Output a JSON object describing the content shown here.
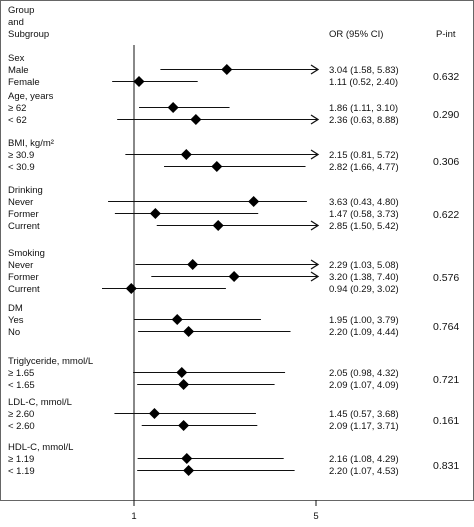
{
  "header": {
    "group_line1": "Group",
    "group_line2": "and",
    "group_line3": "Subgroup",
    "or_col": "OR (95% CI)",
    "pint_col": "P-int"
  },
  "chart_data": {
    "type": "forest",
    "xaxis": {
      "reference_line": 1,
      "ticks": [
        1,
        5
      ],
      "tick_labels": [
        "1",
        "5"
      ]
    },
    "groups": [
      {
        "label": "Sex",
        "pint": "0.632",
        "rows": [
          {
            "label": "Male",
            "or": 3.04,
            "lo": 1.58,
            "hi": 5.83,
            "text": "3.04 (1.58, 5.83)",
            "arrow": true
          },
          {
            "label": "Female",
            "or": 1.11,
            "lo": 0.52,
            "hi": 2.4,
            "text": "1.11 (0.52, 2.40)",
            "arrow": false
          }
        ]
      },
      {
        "label": "Age, years",
        "pint": "0.290",
        "rows": [
          {
            "label": "≥ 62",
            "or": 1.86,
            "lo": 1.11,
            "hi": 3.1,
            "text": "1.86 (1.11, 3.10)",
            "arrow": false
          },
          {
            "label": "< 62",
            "or": 2.36,
            "lo": 0.63,
            "hi": 8.88,
            "text": "2.36 (0.63, 8.88)",
            "arrow": true
          }
        ]
      },
      {
        "label": "BMI, kg/m²",
        "pint": "0.306",
        "rows": [
          {
            "label": "≥ 30.9",
            "or": 2.15,
            "lo": 0.81,
            "hi": 5.72,
            "text": "2.15 (0.81, 5.72)",
            "arrow": true
          },
          {
            "label": "< 30.9",
            "or": 2.82,
            "lo": 1.66,
            "hi": 4.77,
            "text": "2.82 (1.66, 4.77)",
            "arrow": false
          }
        ]
      },
      {
        "label": "Drinking",
        "pint": "0.622",
        "rows": [
          {
            "label": "Never",
            "or": 3.63,
            "lo": 0.43,
            "hi": 4.8,
            "text": "3.63 (0.43, 4.80)",
            "arrow": false
          },
          {
            "label": "Former",
            "or": 1.47,
            "lo": 0.58,
            "hi": 3.73,
            "text": "1.47 (0.58, 3.73)",
            "arrow": false
          },
          {
            "label": "Current",
            "or": 2.85,
            "lo": 1.5,
            "hi": 5.42,
            "text": "2.85 (1.50, 5.42)",
            "arrow": true
          }
        ]
      },
      {
        "label": "Smoking",
        "pint": "0.576",
        "rows": [
          {
            "label": "Never",
            "or": 2.29,
            "lo": 1.03,
            "hi": 5.08,
            "text": "2.29 (1.03, 5.08)",
            "arrow": true
          },
          {
            "label": "Former",
            "or": 3.2,
            "lo": 1.38,
            "hi": 7.4,
            "text": "3.20 (1.38, 7.40)",
            "arrow": true
          },
          {
            "label": "Current",
            "or": 0.94,
            "lo": 0.29,
            "hi": 3.02,
            "text": "0.94 (0.29, 3.02)",
            "arrow": false
          }
        ]
      },
      {
        "label": "DM",
        "pint": "0.764",
        "rows": [
          {
            "label": "Yes",
            "or": 1.95,
            "lo": 1.0,
            "hi": 3.79,
            "text": "1.95 (1.00, 3.79)",
            "arrow": false
          },
          {
            "label": "No",
            "or": 2.2,
            "lo": 1.09,
            "hi": 4.44,
            "text": "2.20 (1.09, 4.44)",
            "arrow": false
          }
        ]
      },
      {
        "label": "Triglyceride, mmol/L",
        "pint": "0.721",
        "rows": [
          {
            "label": "≥ 1.65",
            "or": 2.05,
            "lo": 0.98,
            "hi": 4.32,
            "text": "2.05 (0.98, 4.32)",
            "arrow": false
          },
          {
            "label": "< 1.65",
            "or": 2.09,
            "lo": 1.07,
            "hi": 4.09,
            "text": "2.09 (1.07, 4.09)",
            "arrow": false
          }
        ]
      },
      {
        "label": "LDL-C, mmol/L",
        "pint": "0.161",
        "rows": [
          {
            "label": "≥ 2.60",
            "or": 1.45,
            "lo": 0.57,
            "hi": 3.68,
            "text": "1.45 (0.57, 3.68)",
            "arrow": false
          },
          {
            "label": "< 2.60",
            "or": 2.09,
            "lo": 1.17,
            "hi": 3.71,
            "text": "2.09 (1.17, 3.71)",
            "arrow": false
          }
        ]
      },
      {
        "label": "HDL-C, mmol/L",
        "pint": "0.831",
        "rows": [
          {
            "label": "≥ 1.19",
            "or": 2.16,
            "lo": 1.08,
            "hi": 4.29,
            "text": "2.16 (1.08, 4.29)",
            "arrow": false
          },
          {
            "label": "< 1.19",
            "or": 2.2,
            "lo": 1.07,
            "hi": 4.53,
            "text": "2.20 (1.07, 4.53)",
            "arrow": false
          }
        ]
      }
    ]
  }
}
